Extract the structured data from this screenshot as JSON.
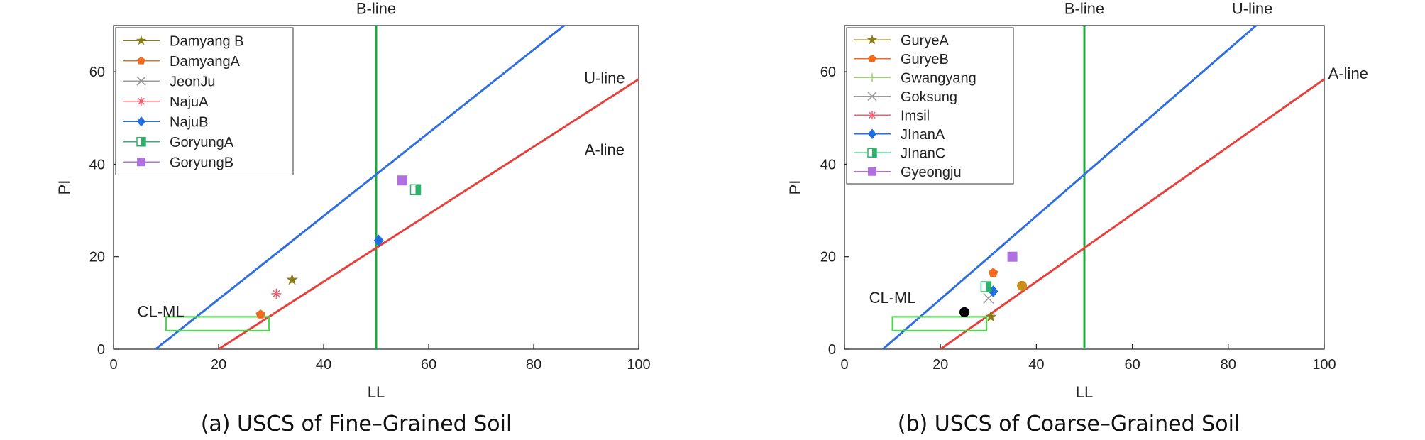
{
  "charts": [
    {
      "caption": "(a) USCS of Fine–Grained Soil",
      "chart_data": {
        "type": "scatter",
        "xlabel": "LL",
        "ylabel": "PI",
        "xlim": [
          0,
          100
        ],
        "ylim": [
          0,
          70
        ],
        "x_ticks": [
          "0",
          "20",
          "40",
          "60",
          "80",
          "100"
        ],
        "y_ticks": [
          "0",
          "20",
          "40",
          "60"
        ],
        "grid": false,
        "legend_position": "top-left",
        "series": [
          {
            "name": "Damyang B",
            "marker": "star",
            "color": "#8B7D1A",
            "x": [
              34
            ],
            "y": [
              15
            ]
          },
          {
            "name": "DamyangA",
            "marker": "pentagon",
            "color": "#F26B1D",
            "x": [
              28
            ],
            "y": [
              7.5
            ]
          },
          {
            "name": "JeonJu",
            "marker": "x",
            "color": "#9A9A9A",
            "x": [],
            "y": []
          },
          {
            "name": "NajuA",
            "marker": "asterisk",
            "color": "#F25C6B",
            "x": [
              31
            ],
            "y": [
              12
            ]
          },
          {
            "name": "NajuB",
            "marker": "diamond",
            "color": "#1F6FE0",
            "x": [
              50.5
            ],
            "y": [
              23.5
            ]
          },
          {
            "name": "GoryungA",
            "marker": "half-square",
            "color": "#2DB36A",
            "x": [
              57.5
            ],
            "y": [
              34.5
            ]
          },
          {
            "name": "GoryungB",
            "marker": "square",
            "color": "#B070E0",
            "x": [
              55
            ],
            "y": [
              36.5
            ]
          }
        ],
        "reference_lines": [
          {
            "label": "B-line",
            "color": "#1FA83A",
            "points": [
              [
                50,
                0
              ],
              [
                50,
                70
              ]
            ]
          },
          {
            "label": "U-line",
            "color": "#2F6FE0",
            "points": [
              [
                8,
                0
              ],
              [
                86.9,
                71
              ]
            ]
          },
          {
            "label": "A-line",
            "color": "#E8413C",
            "points": [
              [
                20,
                0
              ],
              [
                100,
                58.4
              ]
            ]
          }
        ],
        "annotations": [
          {
            "text": "B-line",
            "x": 50,
            "y": 72.5
          },
          {
            "text": "U-line",
            "x": 93.5,
            "y": 57.5
          },
          {
            "text": "A-line",
            "x": 93.5,
            "y": 42
          },
          {
            "text": "CL-ML",
            "x": 9,
            "y": 7
          }
        ],
        "cl_ml_zone": {
          "x": [
            10,
            29.6
          ],
          "y": [
            4,
            7
          ],
          "color": "#4CD94C"
        }
      }
    },
    {
      "caption": "(b) USCS of Coarse–Grained Soil",
      "chart_data": {
        "type": "scatter",
        "xlabel": "LL",
        "ylabel": "PI",
        "xlim": [
          0,
          100
        ],
        "ylim": [
          0,
          70
        ],
        "x_ticks": [
          "0",
          "20",
          "40",
          "60",
          "80",
          "100"
        ],
        "y_ticks": [
          "0",
          "20",
          "40",
          "60"
        ],
        "grid": false,
        "legend_position": "top-left",
        "series": [
          {
            "name": "GuryeA",
            "marker": "star",
            "color": "#8B7D1A",
            "x": [
              30.5
            ],
            "y": [
              7
            ]
          },
          {
            "name": "GuryeB",
            "marker": "pentagon",
            "color": "#F26B1D",
            "x": [
              31
            ],
            "y": [
              16.5
            ]
          },
          {
            "name": "Gwangyang",
            "marker": "plus",
            "color": "#9BD46B",
            "x": [],
            "y": []
          },
          {
            "name": "Goksung",
            "marker": "x",
            "color": "#9A9A9A",
            "x": [
              30
            ],
            "y": [
              11
            ]
          },
          {
            "name": "Imsil",
            "marker": "asterisk",
            "color": "#F25C6B",
            "x": [],
            "y": []
          },
          {
            "name": "JInanA",
            "marker": "diamond",
            "color": "#1F6FE0",
            "x": [
              31
            ],
            "y": [
              12.5
            ]
          },
          {
            "name": "JInanC",
            "marker": "half-square",
            "color": "#2DB36A",
            "x": [
              29.5
            ],
            "y": [
              13.5
            ]
          },
          {
            "name": "Gyeongju",
            "marker": "square",
            "color": "#B070E0",
            "x": [
              35
            ],
            "y": [
              20
            ]
          }
        ],
        "extra_points": [
          {
            "x": 25,
            "y": 8,
            "color": "#000000",
            "marker": "circle"
          },
          {
            "x": 37,
            "y": 13.7,
            "color": "#C8901A",
            "marker": "circle"
          }
        ],
        "reference_lines": [
          {
            "label": "B-line",
            "color": "#1FA83A",
            "points": [
              [
                50,
                0
              ],
              [
                50,
                70
              ]
            ]
          },
          {
            "label": "U-line",
            "color": "#2F6FE0",
            "points": [
              [
                8,
                0
              ],
              [
                86.9,
                71
              ]
            ]
          },
          {
            "label": "A-line",
            "color": "#E8413C",
            "points": [
              [
                20,
                0
              ],
              [
                100,
                58.4
              ]
            ]
          }
        ],
        "annotations": [
          {
            "text": "B-line",
            "x": 50,
            "y": 72.5
          },
          {
            "text": "U-line",
            "x": 85,
            "y": 72.5
          },
          {
            "text": "A-line",
            "x": 105,
            "y": 58.5
          },
          {
            "text": "CL-ML",
            "x": 10,
            "y": 10
          }
        ],
        "cl_ml_zone": {
          "x": [
            10,
            29.6
          ],
          "y": [
            4,
            7
          ],
          "color": "#4CD94C"
        }
      }
    }
  ]
}
